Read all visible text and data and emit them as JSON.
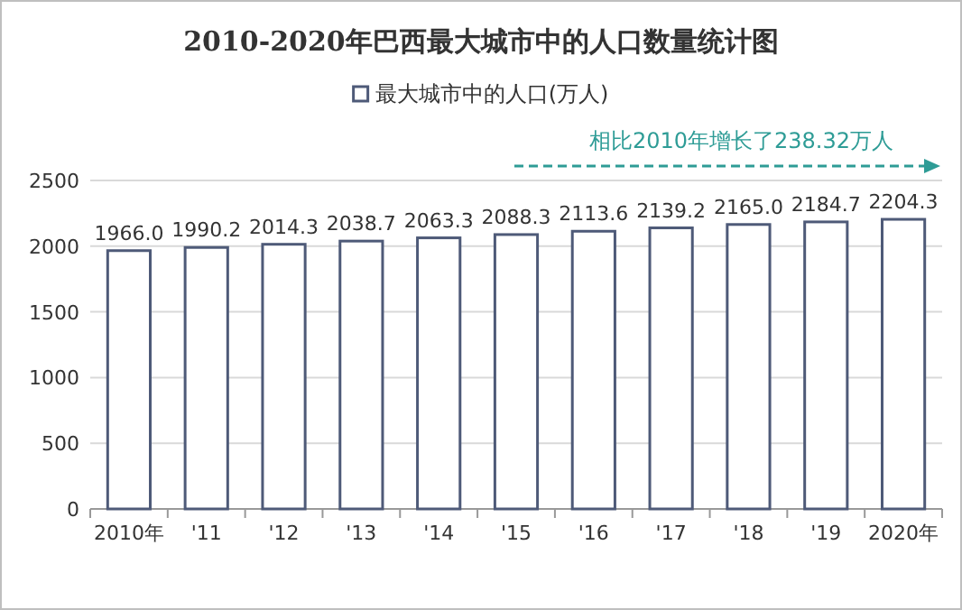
{
  "chart_data": {
    "type": "bar",
    "title": "2010-2020年巴西最大城市中的人口数量统计图",
    "categories": [
      "2010年",
      "'11",
      "'12",
      "'13",
      "'14",
      "'15",
      "'16",
      "'17",
      "'18",
      "'19",
      "2020年"
    ],
    "series": [
      {
        "name": "最大城市中的人口(万人)",
        "color": "#4e5a78",
        "values": [
          1966.0,
          1990.2,
          2014.3,
          2038.7,
          2063.3,
          2088.3,
          2113.6,
          2139.2,
          2165.0,
          2184.7,
          2204.3
        ]
      }
    ],
    "value_labels": [
      "1966.0",
      "1990.2",
      "2014.3",
      "2038.7",
      "2063.3",
      "2088.3",
      "2113.6",
      "2139.2",
      "2165.0",
      "2184.7",
      "2204.3"
    ],
    "annotations": [
      "相比2010年增长了238.32万人"
    ],
    "ylim": [
      0,
      2500
    ],
    "yticks": [
      0,
      500,
      1000,
      1500,
      2000,
      2500
    ],
    "grid": "y",
    "legend": "top"
  }
}
